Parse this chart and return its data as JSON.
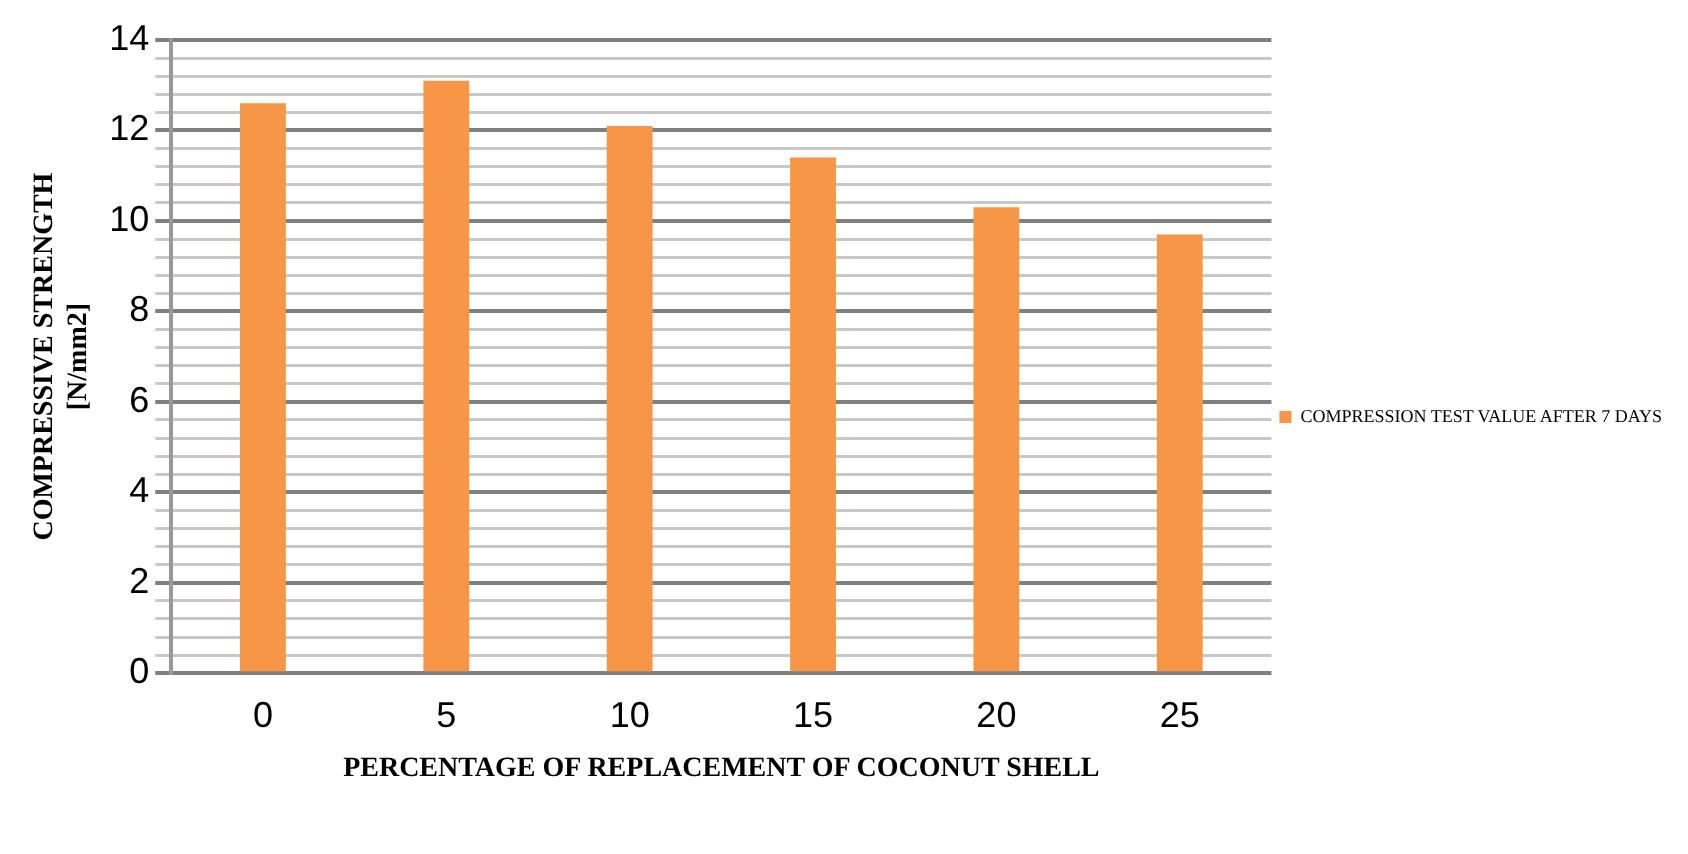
{
  "chart_data": {
    "type": "bar",
    "xlabel": "PERCENTAGE OF REPLACEMENT OF COCONUT SHELL",
    "ylabel": "COMPRESSIVE STRENGTH [N/mm2]",
    "categories": [
      "0",
      "5",
      "10",
      "15",
      "20",
      "25"
    ],
    "series": [
      {
        "name": "COMPRESSION TEST VALUE AFTER 7 DAYS",
        "color": "#f79646",
        "values": [
          12.6,
          13.1,
          12.1,
          11.4,
          10.3,
          9.7
        ]
      }
    ],
    "ylim": [
      0,
      14
    ],
    "yticks": [
      0,
      {
        "value": 0.4,
        "label": null
      },
      {
        "value": 0.8,
        "label": null
      },
      {
        "value": 1.2,
        "label": null
      },
      {
        "value": 1.6,
        "label": null
      },
      2,
      {
        "value": 2.4,
        "label": null
      },
      {
        "value": 2.8,
        "label": null
      },
      {
        "value": 3.2,
        "label": null
      },
      {
        "value": 3.6,
        "label": null
      },
      4,
      {
        "value": 4.4,
        "label": null
      },
      {
        "value": 4.8,
        "label": null
      },
      {
        "value": 5.2,
        "label": null
      },
      {
        "value": 5.6,
        "label": null
      },
      6,
      {
        "value": 6.4,
        "label": null
      },
      {
        "value": 6.8,
        "label": null
      },
      {
        "value": 7.2,
        "label": null
      },
      {
        "value": 7.6,
        "label": null
      },
      8,
      {
        "value": 8.4,
        "label": null
      },
      {
        "value": 8.8,
        "label": null
      },
      {
        "value": 9.2,
        "label": null
      },
      {
        "value": 9.6,
        "label": null
      },
      10,
      {
        "value": 10.4,
        "label": null
      },
      {
        "value": 10.8,
        "label": null
      },
      {
        "value": 11.2,
        "label": null
      },
      {
        "value": 11.6,
        "label": null
      },
      12,
      {
        "value": 12.4,
        "label": null
      },
      {
        "value": 12.8,
        "label": null
      },
      {
        "value": 13.2,
        "label": null
      },
      {
        "value": 13.6,
        "label": null
      },
      14
    ],
    "grid": "y",
    "legend": "right"
  }
}
